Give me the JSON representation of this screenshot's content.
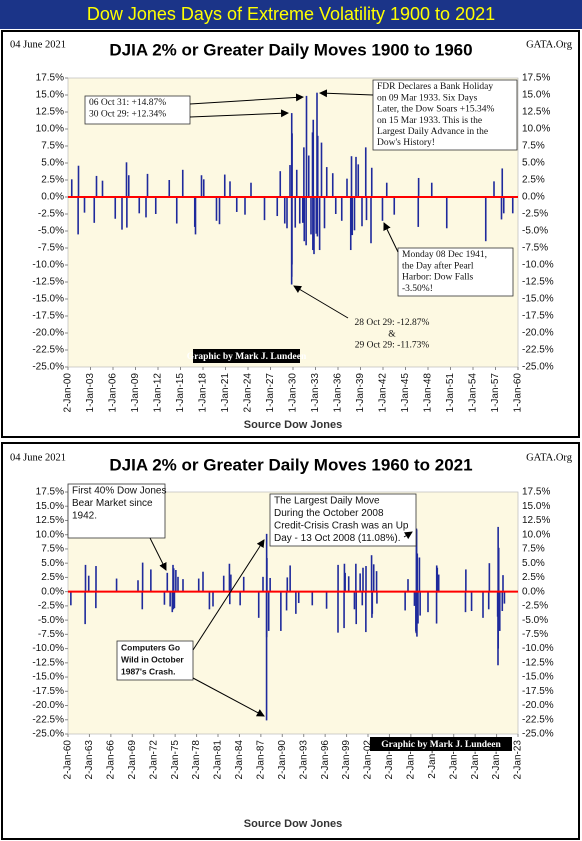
{
  "page_title": "Dow Jones Days of Extreme Volatility 1900 to 2021",
  "chart_data": [
    {
      "type": "bar",
      "title": "DJIA 2% or Greater Daily Moves 1900 to 1960",
      "date": "04 June 2021",
      "site": "GATA.Org",
      "xlabel": "Source Dow Jones",
      "credit": "Graphic by Mark J. Lundeen",
      "color": "#1f2a9c",
      "zero_line_color": "#ff0000",
      "x": [
        1900.5,
        1901.35,
        1901.4,
        1902.2,
        1903.5,
        1903.8,
        1904.6,
        1906.3,
        1907.2,
        1907.8,
        1907.85,
        1908.1,
        1909.5,
        1910.4,
        1910.6,
        1911.7,
        1913.5,
        1914.5,
        1915.3,
        1916.9,
        1917.0,
        1917.8,
        1918.1,
        1919.8,
        1920.2,
        1920.9,
        1921.6,
        1922.5,
        1923.6,
        1924.4,
        1926.2,
        1927.9,
        1928.3,
        1928.9,
        1929.2,
        1929.6,
        1929.82,
        1929.83,
        1929.84,
        1929.86,
        1929.88,
        1930.3,
        1930.5,
        1930.9,
        1931.3,
        1931.45,
        1931.5,
        1931.75,
        1931.8,
        1932.1,
        1932.4,
        1932.6,
        1932.65,
        1932.7,
        1932.8,
        1933.1,
        1933.2,
        1933.25,
        1933.3,
        1933.55,
        1933.8,
        1934.2,
        1934.5,
        1935.3,
        1935.7,
        1936.5,
        1937.2,
        1937.7,
        1937.8,
        1937.9,
        1938.2,
        1938.4,
        1938.7,
        1939.2,
        1939.7,
        1939.8,
        1940.4,
        1940.5,
        1941.93,
        1942.5,
        1943.5,
        1946.7,
        1946.75,
        1948.5,
        1950.5,
        1955.7,
        1956.8,
        1957.8,
        1957.9,
        1958.1,
        1959.3
      ],
      "values": [
        2.6,
        -5.5,
        4.6,
        -2.3,
        -3.8,
        3.1,
        2.4,
        -3.2,
        -4.8,
        5.1,
        -4.5,
        3.2,
        -2.4,
        -3.0,
        3.4,
        -2.5,
        2.5,
        -3.9,
        4.0,
        -4.4,
        -5.5,
        3.2,
        2.6,
        -3.5,
        -4.0,
        3.3,
        2.3,
        -2.2,
        -2.6,
        2.1,
        -3.4,
        -2.8,
        3.8,
        -3.9,
        -4.6,
        4.7,
        -12.87,
        12.34,
        -11.73,
        -9.92,
        9.36,
        -4.5,
        4.0,
        -3.9,
        -3.8,
        7.3,
        -6.5,
        -7.1,
        14.87,
        6.1,
        -5.5,
        9.5,
        -7.8,
        11.36,
        -8.4,
        -5.4,
        15.34,
        -5.8,
        9.0,
        -7.8,
        8.0,
        -4.6,
        4.4,
        3.5,
        -2.5,
        -3.5,
        2.7,
        -7.8,
        6.0,
        -5.6,
        -4.9,
        5.9,
        4.8,
        -4.3,
        7.3,
        -3.4,
        -6.8,
        4.3,
        -3.5,
        2.1,
        -2.6,
        -4.4,
        2.8,
        2.1,
        -4.6,
        -6.5,
        2.3,
        -3.3,
        4.2,
        -2.4,
        -2.4
      ],
      "xlim": [
        1900,
        1960
      ],
      "xticks": [
        {
          "value": 1900,
          "label": "2-Jan-00"
        },
        {
          "value": 1903,
          "label": "1-Jan-03"
        },
        {
          "value": 1906,
          "label": "1-Jan-06"
        },
        {
          "value": 1909,
          "label": "1-Jan-09"
        },
        {
          "value": 1912,
          "label": "1-Jan-12"
        },
        {
          "value": 1915,
          "label": "1-Jan-15"
        },
        {
          "value": 1918,
          "label": "1-Jan-18"
        },
        {
          "value": 1921,
          "label": "1-Jan-21"
        },
        {
          "value": 1924,
          "label": "2-Jan-24"
        },
        {
          "value": 1927,
          "label": "1-Jan-27"
        },
        {
          "value": 1930,
          "label": "1-Jan-30"
        },
        {
          "value": 1933,
          "label": "1-Jan-33"
        },
        {
          "value": 1936,
          "label": "1-Jan-36"
        },
        {
          "value": 1939,
          "label": "1-Jan-39"
        },
        {
          "value": 1942,
          "label": "1-Jan-42"
        },
        {
          "value": 1945,
          "label": "1-Jan-45"
        },
        {
          "value": 1948,
          "label": "1-Jan-48"
        },
        {
          "value": 1951,
          "label": "1-Jan-51"
        },
        {
          "value": 1954,
          "label": "1-Jan-54"
        },
        {
          "value": 1957,
          "label": "1-Jan-57"
        },
        {
          "value": 1960,
          "label": "1-Jan-60"
        }
      ],
      "ylim": [
        -25,
        17.5
      ],
      "yticks": [
        {
          "value": 17.5,
          "label": "17.5%"
        },
        {
          "value": 15,
          "label": "15.0%"
        },
        {
          "value": 12.5,
          "label": "12.5%"
        },
        {
          "value": 10,
          "label": "10.0%"
        },
        {
          "value": 7.5,
          "label": "7.5%"
        },
        {
          "value": 5,
          "label": "5.0%"
        },
        {
          "value": 2.5,
          "label": "2.5%"
        },
        {
          "value": 0,
          "label": "0.0%"
        },
        {
          "value": -2.5,
          "label": "-2.5%"
        },
        {
          "value": -5,
          "label": "-5.0%"
        },
        {
          "value": -7.5,
          "label": "-7.5%"
        },
        {
          "value": -10,
          "label": "-10.0%"
        },
        {
          "value": -12.5,
          "label": "-12.5%"
        },
        {
          "value": -15,
          "label": "-15.0%"
        },
        {
          "value": -17.5,
          "label": "-17.5%"
        },
        {
          "value": -20,
          "label": "-20.0%"
        },
        {
          "value": -22.5,
          "label": "-22.5%"
        },
        {
          "value": -25,
          "label": "-25.0%"
        }
      ],
      "annotations": [
        {
          "lines": [
            "06 Oct 31: +14.87%",
            "30 Oct 29: +12.34%"
          ]
        },
        {
          "lines": [
            "FDR Declares a  Bank Holiday",
            "on 09 Mar 1933.  Six Days",
            "Later, the Dow Soars +15.34%",
            "on 15 Mar 1933.   This is the",
            "Largest Daily Advance  in the",
            "Dow's History!"
          ]
        },
        {
          "lines": [
            "Monday 08 Dec 1941,",
            "the Day after Pearl",
            "Harbor:  Dow Falls",
            "-3.50%!"
          ]
        },
        {
          "lines": [
            "28 Oct 29: -12.87%",
            "&",
            "29 Oct 29: -11.73%"
          ]
        }
      ]
    },
    {
      "type": "bar",
      "title": "DJIA 2% or Greater Daily Moves 1960 to 2021",
      "date": "04 June 2021",
      "site": "GATA.Org",
      "xlabel": "Source Dow Jones",
      "credit": "Graphic by Mark J. Lundeen",
      "color": "#1f2a9c",
      "zero_line_color": "#ff0000",
      "x": [
        1960.4,
        1962.4,
        1962.45,
        1962.9,
        1963.9,
        1963.92,
        1966.8,
        1969.8,
        1970.4,
        1970.45,
        1971.6,
        1973.5,
        1973.9,
        1974.3,
        1974.6,
        1974.7,
        1974.75,
        1974.8,
        1974.9,
        1975.1,
        1975.4,
        1976.1,
        1978.3,
        1978.9,
        1979.8,
        1980.3,
        1981.8,
        1982.6,
        1982.65,
        1982.8,
        1984.1,
        1984.6,
        1986.7,
        1987.3,
        1987.8,
        1987.81,
        1987.82,
        1987.85,
        1988.1,
        1988.3,
        1989.8,
        1990.6,
        1990.7,
        1991.1,
        1991.9,
        1992.3,
        1994.2,
        1996.2,
        1997.8,
        1997.81,
        1998.65,
        1998.7,
        1998.8,
        1999.3,
        2000.1,
        2000.3,
        2000.35,
        2000.9,
        2001.2,
        2001.3,
        2001.7,
        2001.72,
        2002.5,
        2002.55,
        2002.6,
        2002.8,
        2003.2,
        2003.25,
        2007.2,
        2007.6,
        2008.5,
        2008.7,
        2008.75,
        2008.78,
        2008.8,
        2008.85,
        2008.9,
        2009.0,
        2009.2,
        2009.3,
        2010.4,
        2011.6,
        2011.62,
        2011.7,
        2011.9,
        2015.65,
        2015.7,
        2016.5,
        2018.1,
        2018.9,
        2018.99,
        2020.15,
        2020.2,
        2020.22,
        2020.23,
        2020.25,
        2020.3,
        2020.45,
        2020.8,
        2020.9,
        2021.1
      ],
      "values": [
        -2.4,
        -5.7,
        4.7,
        2.8,
        -2.9,
        4.5,
        2.3,
        2.0,
        -3.1,
        5.1,
        3.9,
        -2.3,
        3.3,
        -2.6,
        -3.6,
        4.7,
        -3.1,
        4.1,
        -2.9,
        3.8,
        2.6,
        2.2,
        2.3,
        3.5,
        -3.1,
        -2.6,
        2.8,
        4.9,
        -2.2,
        3.0,
        -2.4,
        2.6,
        -4.6,
        2.6,
        -22.61,
        10.15,
        -8.0,
        5.9,
        -6.9,
        2.4,
        -6.9,
        -3.3,
        2.5,
        4.6,
        -3.9,
        -2.0,
        -2.4,
        -3.0,
        -7.2,
        4.7,
        -6.4,
        4.9,
        3.3,
        2.7,
        -3.1,
        4.9,
        -5.7,
        3.2,
        -2.4,
        4.2,
        -7.1,
        4.5,
        6.4,
        -4.6,
        -3.9,
        4.8,
        3.6,
        -2.1,
        -3.3,
        2.2,
        -2.5,
        -7.0,
        -7.3,
        11.08,
        10.9,
        -7.9,
        6.7,
        -5.6,
        6.0,
        -4.2,
        -3.6,
        -5.6,
        4.6,
        4.2,
        3.0,
        -3.6,
        3.9,
        -3.4,
        -4.6,
        -3.1,
        5.0,
        -4.4,
        -12.93,
        11.37,
        -9.99,
        6.4,
        7.7,
        -6.9,
        -3.4,
        2.9,
        -2.1
      ],
      "xlim": [
        1960,
        2023
      ],
      "xticks": [
        {
          "value": 1960,
          "label": "2-Jan-60"
        },
        {
          "value": 1963,
          "label": "2-Jan-63"
        },
        {
          "value": 1966,
          "label": "2-Jan-66"
        },
        {
          "value": 1969,
          "label": "2-Jan-69"
        },
        {
          "value": 1972,
          "label": "2-Jan-72"
        },
        {
          "value": 1975,
          "label": "2-Jan-75"
        },
        {
          "value": 1978,
          "label": "2-Jan-78"
        },
        {
          "value": 1981,
          "label": "2-Jan-81"
        },
        {
          "value": 1984,
          "label": "2-Jan-84"
        },
        {
          "value": 1987,
          "label": "2-Jan-87"
        },
        {
          "value": 1990,
          "label": "2-Jan-90"
        },
        {
          "value": 1993,
          "label": "2-Jan-93"
        },
        {
          "value": 1996,
          "label": "2-Jan-96"
        },
        {
          "value": 1999,
          "label": "2-Jan-99"
        },
        {
          "value": 2002,
          "label": "2-Jan-02"
        },
        {
          "value": 2005,
          "label": "2-Jan-05"
        },
        {
          "value": 2008,
          "label": "2-Jan-08"
        },
        {
          "value": 2011,
          "label": "2-Jan-11"
        },
        {
          "value": 2014,
          "label": "2-Jan-14"
        },
        {
          "value": 2017,
          "label": "2-Jan-17"
        },
        {
          "value": 2020,
          "label": "2-Jan-20"
        },
        {
          "value": 2023,
          "label": "2-Jan-23"
        }
      ],
      "ylim": [
        -25,
        17.5
      ],
      "yticks": [
        {
          "value": 17.5,
          "label": "17.5%"
        },
        {
          "value": 15,
          "label": "15.0%"
        },
        {
          "value": 12.5,
          "label": "12.5%"
        },
        {
          "value": 10,
          "label": "10.0%"
        },
        {
          "value": 7.5,
          "label": "7.5%"
        },
        {
          "value": 5,
          "label": "5.0%"
        },
        {
          "value": 2.5,
          "label": "2.5%"
        },
        {
          "value": 0,
          "label": "0.0%"
        },
        {
          "value": -2.5,
          "label": "-2.5%"
        },
        {
          "value": -5,
          "label": "-5.0%"
        },
        {
          "value": -7.5,
          "label": "-7.5%"
        },
        {
          "value": -10,
          "label": "-10.0%"
        },
        {
          "value": -12.5,
          "label": "-12.5%"
        },
        {
          "value": -15,
          "label": "-15.0%"
        },
        {
          "value": -17.5,
          "label": "-17.5%"
        },
        {
          "value": -20,
          "label": "-20.0%"
        },
        {
          "value": -22.5,
          "label": "-22.5%"
        },
        {
          "value": -25,
          "label": "-25.0%"
        }
      ],
      "annotations": [
        {
          "lines": [
            "First 40% Dow Jones",
            "Bear Market since",
            "1942."
          ]
        },
        {
          "lines": [
            "The Largest Daily Move",
            "During the October 2008",
            "Credit-Crisis Crash was an Up",
            "Day - 13 Oct 2008 (11.08%)."
          ]
        },
        {
          "lines": [
            "Computers Go",
            "Wild in October",
            "1987's Crash."
          ]
        }
      ]
    }
  ]
}
